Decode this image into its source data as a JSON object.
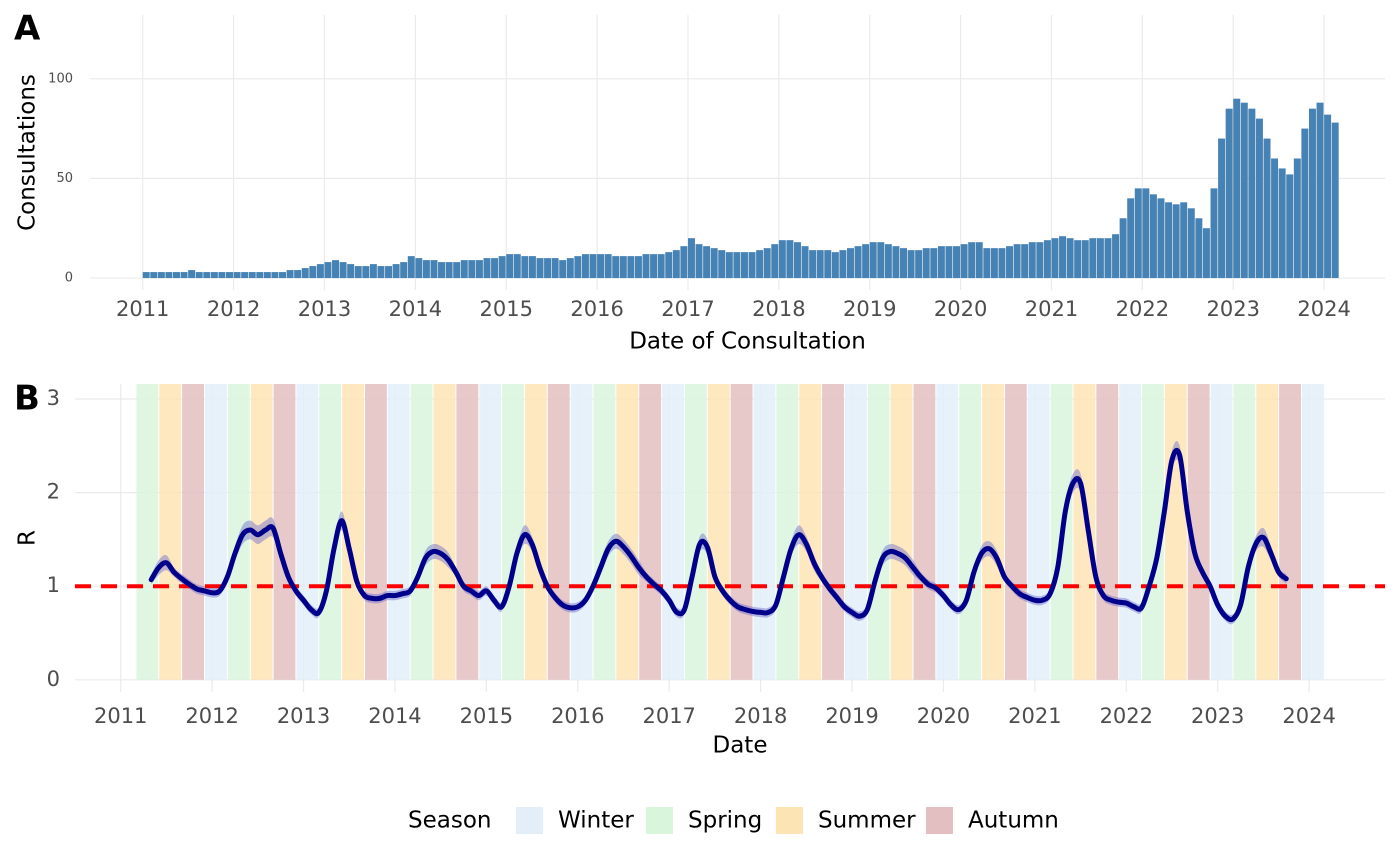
{
  "chart_data": [
    {
      "type": "bar",
      "panel_label": "A",
      "xlabel": "Date of Consultation",
      "ylabel": "Consultations",
      "color": "#4682b4",
      "xlim": [
        2010.42,
        2024.67
      ],
      "xticks": [
        2011,
        2012,
        2013,
        2014,
        2015,
        2016,
        2017,
        2018,
        2019,
        2020,
        2021,
        2022,
        2023,
        2024
      ],
      "ylim": [
        -6,
        132
      ],
      "yticks": [
        0,
        50,
        100
      ],
      "grid": true,
      "x": [
        "2011-01",
        "2011-02",
        "2011-03",
        "2011-04",
        "2011-05",
        "2011-06",
        "2011-07",
        "2011-08",
        "2011-09",
        "2011-10",
        "2011-11",
        "2011-12",
        "2012-01",
        "2012-02",
        "2012-03",
        "2012-04",
        "2012-05",
        "2012-06",
        "2012-07",
        "2012-08",
        "2012-09",
        "2012-10",
        "2012-11",
        "2012-12",
        "2013-01",
        "2013-02",
        "2013-03",
        "2013-04",
        "2013-05",
        "2013-06",
        "2013-07",
        "2013-08",
        "2013-09",
        "2013-10",
        "2013-11",
        "2013-12",
        "2014-01",
        "2014-02",
        "2014-03",
        "2014-04",
        "2014-05",
        "2014-06",
        "2014-07",
        "2014-08",
        "2014-09",
        "2014-10",
        "2014-11",
        "2014-12",
        "2015-01",
        "2015-02",
        "2015-03",
        "2015-04",
        "2015-05",
        "2015-06",
        "2015-07",
        "2015-08",
        "2015-09",
        "2015-10",
        "2015-11",
        "2015-12",
        "2016-01",
        "2016-02",
        "2016-03",
        "2016-04",
        "2016-05",
        "2016-06",
        "2016-07",
        "2016-08",
        "2016-09",
        "2016-10",
        "2016-11",
        "2016-12",
        "2017-01",
        "2017-02",
        "2017-03",
        "2017-04",
        "2017-05",
        "2017-06",
        "2017-07",
        "2017-08",
        "2017-09",
        "2017-10",
        "2017-11",
        "2017-12",
        "2018-01",
        "2018-02",
        "2018-03",
        "2018-04",
        "2018-05",
        "2018-06",
        "2018-07",
        "2018-08",
        "2018-09",
        "2018-10",
        "2018-11",
        "2018-12",
        "2019-01",
        "2019-02",
        "2019-03",
        "2019-04",
        "2019-05",
        "2019-06",
        "2019-07",
        "2019-08",
        "2019-09",
        "2019-10",
        "2019-11",
        "2019-12",
        "2020-01",
        "2020-02",
        "2020-03",
        "2020-04",
        "2020-05",
        "2020-06",
        "2020-07",
        "2020-08",
        "2020-09",
        "2020-10",
        "2020-11",
        "2020-12",
        "2021-01",
        "2021-02",
        "2021-03",
        "2021-04",
        "2021-05",
        "2021-06",
        "2021-07",
        "2021-08",
        "2021-09",
        "2021-10",
        "2021-11",
        "2021-12",
        "2022-01",
        "2022-02",
        "2022-03",
        "2022-04",
        "2022-05",
        "2022-06",
        "2022-07",
        "2022-08",
        "2022-09",
        "2022-10",
        "2022-11",
        "2022-12",
        "2023-01",
        "2023-02",
        "2023-03",
        "2023-04",
        "2023-05",
        "2023-06",
        "2023-07",
        "2023-08",
        "2023-09",
        "2023-10",
        "2023-11",
        "2023-12",
        "2024-01",
        "2024-02"
      ],
      "values": [
        3,
        3,
        3,
        3,
        3,
        3,
        4,
        3,
        3,
        3,
        3,
        3,
        3,
        3,
        3,
        3,
        3,
        3,
        3,
        4,
        4,
        5,
        6,
        7,
        8,
        9,
        8,
        7,
        6,
        6,
        7,
        6,
        6,
        7,
        8,
        11,
        10,
        9,
        9,
        8,
        8,
        8,
        9,
        9,
        9,
        10,
        10,
        11,
        12,
        12,
        11,
        11,
        10,
        10,
        10,
        9,
        10,
        11,
        12,
        12,
        12,
        12,
        11,
        11,
        11,
        11,
        12,
        12,
        12,
        13,
        14,
        16,
        20,
        17,
        16,
        15,
        14,
        13,
        13,
        13,
        13,
        14,
        15,
        17,
        19,
        19,
        18,
        16,
        14,
        14,
        14,
        13,
        14,
        15,
        16,
        17,
        18,
        18,
        17,
        16,
        15,
        14,
        14,
        15,
        15,
        16,
        16,
        16,
        17,
        18,
        18,
        15,
        15,
        15,
        16,
        17,
        17,
        18,
        18,
        19,
        20,
        21,
        20,
        19,
        19,
        20,
        20,
        20,
        22,
        30,
        40,
        45,
        45,
        42,
        40,
        38,
        37,
        38,
        35,
        30,
        25,
        45,
        70,
        85,
        90,
        88,
        85,
        80,
        70,
        60,
        55,
        52,
        60,
        75,
        85,
        88,
        82,
        78
      ]
    },
    {
      "type": "line",
      "panel_label": "B",
      "xlabel": "Date",
      "ylabel": "R",
      "color": "#00008b",
      "ribbon_color": "#6a6acd",
      "xlim": [
        2010.5,
        2024.83
      ],
      "xticks": [
        2011,
        2012,
        2013,
        2014,
        2015,
        2016,
        2017,
        2018,
        2019,
        2020,
        2021,
        2022,
        2023,
        2024
      ],
      "ylim": [
        -0.13,
        3.16
      ],
      "yticks": [
        0,
        1,
        2,
        3
      ],
      "grid": true,
      "hline": {
        "value": 1,
        "color": "#ff0000"
      },
      "x": [
        "2011-05",
        "2011-06",
        "2011-07",
        "2011-08",
        "2011-09",
        "2011-10",
        "2011-11",
        "2011-12",
        "2012-01",
        "2012-02",
        "2012-03",
        "2012-04",
        "2012-05",
        "2012-06",
        "2012-07",
        "2012-08",
        "2012-09",
        "2012-10",
        "2012-11",
        "2012-12",
        "2013-01",
        "2013-02",
        "2013-03",
        "2013-04",
        "2013-05",
        "2013-06",
        "2013-07",
        "2013-08",
        "2013-09",
        "2013-10",
        "2013-11",
        "2013-12",
        "2014-01",
        "2014-02",
        "2014-03",
        "2014-04",
        "2014-05",
        "2014-06",
        "2014-07",
        "2014-08",
        "2014-09",
        "2014-10",
        "2014-11",
        "2014-12",
        "2015-01",
        "2015-02",
        "2015-03",
        "2015-04",
        "2015-05",
        "2015-06",
        "2015-07",
        "2015-08",
        "2015-09",
        "2015-10",
        "2015-11",
        "2015-12",
        "2016-01",
        "2016-02",
        "2016-03",
        "2016-04",
        "2016-05",
        "2016-06",
        "2016-07",
        "2016-08",
        "2016-09",
        "2016-10",
        "2016-11",
        "2016-12",
        "2017-01",
        "2017-02",
        "2017-03",
        "2017-04",
        "2017-05",
        "2017-06",
        "2017-07",
        "2017-08",
        "2017-09",
        "2017-10",
        "2017-11",
        "2017-12",
        "2018-01",
        "2018-02",
        "2018-03",
        "2018-04",
        "2018-05",
        "2018-06",
        "2018-07",
        "2018-08",
        "2018-09",
        "2018-10",
        "2018-11",
        "2018-12",
        "2019-01",
        "2019-02",
        "2019-03",
        "2019-04",
        "2019-05",
        "2019-06",
        "2019-07",
        "2019-08",
        "2019-09",
        "2019-10",
        "2019-11",
        "2019-12",
        "2020-01",
        "2020-02",
        "2020-03",
        "2020-04",
        "2020-05",
        "2020-06",
        "2020-07",
        "2020-08",
        "2020-09",
        "2020-10",
        "2020-11",
        "2020-12",
        "2021-01",
        "2021-02",
        "2021-03",
        "2021-04",
        "2021-05",
        "2021-06",
        "2021-07",
        "2021-08",
        "2021-09",
        "2021-10",
        "2021-11",
        "2021-12",
        "2022-01",
        "2022-02",
        "2022-03",
        "2022-04",
        "2022-05",
        "2022-06",
        "2022-07",
        "2022-08",
        "2022-09",
        "2022-10",
        "2022-11",
        "2022-12",
        "2023-01",
        "2023-02",
        "2023-03",
        "2023-04",
        "2023-05",
        "2023-06",
        "2023-07",
        "2023-08",
        "2023-09",
        "2023-10"
      ],
      "values": [
        1.07,
        1.2,
        1.25,
        1.15,
        1.08,
        1.02,
        0.97,
        0.95,
        0.93,
        0.95,
        1.1,
        1.35,
        1.55,
        1.6,
        1.55,
        1.6,
        1.62,
        1.35,
        1.1,
        0.95,
        0.85,
        0.75,
        0.72,
        0.95,
        1.4,
        1.7,
        1.4,
        1.05,
        0.9,
        0.87,
        0.87,
        0.9,
        0.9,
        0.92,
        0.95,
        1.1,
        1.3,
        1.37,
        1.35,
        1.28,
        1.15,
        1.0,
        0.95,
        0.9,
        0.95,
        0.85,
        0.78,
        1.0,
        1.35,
        1.55,
        1.45,
        1.2,
        1.0,
        0.88,
        0.8,
        0.77,
        0.78,
        0.85,
        1.0,
        1.2,
        1.4,
        1.48,
        1.42,
        1.32,
        1.2,
        1.1,
        1.02,
        0.95,
        0.85,
        0.72,
        0.75,
        1.1,
        1.45,
        1.42,
        1.1,
        0.95,
        0.85,
        0.78,
        0.75,
        0.73,
        0.72,
        0.72,
        0.8,
        1.1,
        1.4,
        1.55,
        1.45,
        1.25,
        1.1,
        0.98,
        0.88,
        0.78,
        0.72,
        0.68,
        0.75,
        1.05,
        1.3,
        1.37,
        1.35,
        1.3,
        1.2,
        1.1,
        1.02,
        0.98,
        0.9,
        0.8,
        0.75,
        0.85,
        1.15,
        1.35,
        1.4,
        1.3,
        1.1,
        1.0,
        0.92,
        0.88,
        0.85,
        0.85,
        0.92,
        1.2,
        1.8,
        2.1,
        2.1,
        1.6,
        1.1,
        0.9,
        0.85,
        0.83,
        0.82,
        0.78,
        0.77,
        1.0,
        1.3,
        1.8,
        2.35,
        2.4,
        1.8,
        1.35,
        1.15,
        1.0,
        0.8,
        0.68,
        0.65,
        0.8,
        1.2,
        1.45,
        1.52,
        1.35,
        1.15,
        1.08
      ],
      "lower": [
        1.02,
        1.12,
        1.17,
        1.1,
        1.03,
        0.97,
        0.92,
        0.9,
        0.88,
        0.9,
        1.05,
        1.27,
        1.45,
        1.5,
        1.45,
        1.5,
        1.52,
        1.27,
        1.05,
        0.9,
        0.8,
        0.7,
        0.67,
        0.9,
        1.32,
        1.6,
        1.32,
        1.0,
        0.85,
        0.82,
        0.82,
        0.85,
        0.85,
        0.87,
        0.9,
        1.05,
        1.22,
        1.29,
        1.27,
        1.2,
        1.1,
        0.95,
        0.9,
        0.85,
        0.9,
        0.8,
        0.73,
        0.95,
        1.27,
        1.45,
        1.37,
        1.12,
        0.95,
        0.83,
        0.75,
        0.72,
        0.73,
        0.8,
        0.95,
        1.12,
        1.32,
        1.4,
        1.34,
        1.24,
        1.12,
        1.05,
        0.97,
        0.9,
        0.8,
        0.67,
        0.7,
        1.05,
        1.37,
        1.34,
        1.05,
        0.9,
        0.8,
        0.73,
        0.7,
        0.68,
        0.67,
        0.67,
        0.75,
        1.05,
        1.32,
        1.45,
        1.37,
        1.17,
        1.05,
        0.93,
        0.83,
        0.73,
        0.67,
        0.63,
        0.7,
        1.0,
        1.22,
        1.29,
        1.27,
        1.22,
        1.12,
        1.05,
        0.97,
        0.93,
        0.85,
        0.75,
        0.7,
        0.8,
        1.1,
        1.27,
        1.32,
        1.22,
        1.05,
        0.95,
        0.87,
        0.83,
        0.8,
        0.8,
        0.87,
        1.12,
        1.7,
        2.0,
        2.0,
        1.5,
        1.05,
        0.85,
        0.8,
        0.78,
        0.77,
        0.73,
        0.72,
        0.95,
        1.22,
        1.7,
        2.25,
        2.3,
        1.7,
        1.27,
        1.1,
        0.95,
        0.75,
        0.63,
        0.6,
        0.75,
        1.12,
        1.37,
        1.42,
        1.27,
        1.1,
        1.03
      ],
      "upper": [
        1.12,
        1.28,
        1.33,
        1.2,
        1.13,
        1.07,
        1.02,
        1.0,
        0.98,
        1.0,
        1.15,
        1.43,
        1.65,
        1.7,
        1.65,
        1.7,
        1.72,
        1.43,
        1.15,
        1.0,
        0.9,
        0.8,
        0.77,
        1.0,
        1.48,
        1.8,
        1.48,
        1.1,
        0.95,
        0.92,
        0.92,
        0.95,
        0.95,
        0.97,
        1.0,
        1.15,
        1.38,
        1.45,
        1.43,
        1.36,
        1.2,
        1.05,
        1.0,
        0.95,
        1.0,
        0.9,
        0.83,
        1.05,
        1.43,
        1.65,
        1.53,
        1.28,
        1.05,
        0.93,
        0.85,
        0.82,
        0.83,
        0.9,
        1.05,
        1.28,
        1.48,
        1.56,
        1.5,
        1.4,
        1.28,
        1.15,
        1.07,
        1.0,
        0.9,
        0.77,
        0.8,
        1.15,
        1.53,
        1.5,
        1.15,
        1.0,
        0.9,
        0.83,
        0.8,
        0.78,
        0.77,
        0.77,
        0.85,
        1.15,
        1.48,
        1.65,
        1.53,
        1.33,
        1.15,
        1.03,
        0.93,
        0.83,
        0.77,
        0.73,
        0.8,
        1.1,
        1.38,
        1.45,
        1.43,
        1.38,
        1.28,
        1.15,
        1.07,
        1.03,
        0.95,
        0.85,
        0.8,
        0.9,
        1.2,
        1.43,
        1.48,
        1.38,
        1.15,
        1.05,
        0.97,
        0.93,
        0.9,
        0.9,
        0.97,
        1.28,
        1.9,
        2.2,
        2.2,
        1.7,
        1.15,
        0.95,
        0.9,
        0.88,
        0.87,
        0.83,
        0.82,
        1.05,
        1.38,
        1.9,
        2.45,
        2.5,
        1.9,
        1.43,
        1.2,
        1.05,
        0.85,
        0.73,
        0.7,
        0.85,
        1.28,
        1.53,
        1.62,
        1.43,
        1.2,
        1.13
      ],
      "legend": {
        "title": "Season",
        "items": [
          {
            "name": "Winter",
            "color": "#e3eef9"
          },
          {
            "name": "Spring",
            "color": "#d9f6dd"
          },
          {
            "name": "Summer",
            "color": "#fde4b5"
          },
          {
            "name": "Autumn",
            "color": "#e3bfc1"
          }
        ]
      },
      "bands_end": "2024-03",
      "bands": [
        {
          "start": "2011-03",
          "season": "Spring"
        },
        {
          "start": "2011-06",
          "season": "Summer"
        },
        {
          "start": "2011-09",
          "season": "Autumn"
        },
        {
          "start": "2011-12",
          "season": "Winter"
        },
        {
          "start": "2012-03",
          "season": "Spring"
        },
        {
          "start": "2012-06",
          "season": "Summer"
        },
        {
          "start": "2012-09",
          "season": "Autumn"
        },
        {
          "start": "2012-12",
          "season": "Winter"
        },
        {
          "start": "2013-03",
          "season": "Spring"
        },
        {
          "start": "2013-06",
          "season": "Summer"
        },
        {
          "start": "2013-09",
          "season": "Autumn"
        },
        {
          "start": "2013-12",
          "season": "Winter"
        },
        {
          "start": "2014-03",
          "season": "Spring"
        },
        {
          "start": "2014-06",
          "season": "Summer"
        },
        {
          "start": "2014-09",
          "season": "Autumn"
        },
        {
          "start": "2014-12",
          "season": "Winter"
        },
        {
          "start": "2015-03",
          "season": "Spring"
        },
        {
          "start": "2015-06",
          "season": "Summer"
        },
        {
          "start": "2015-09",
          "season": "Autumn"
        },
        {
          "start": "2015-12",
          "season": "Winter"
        },
        {
          "start": "2016-03",
          "season": "Spring"
        },
        {
          "start": "2016-06",
          "season": "Summer"
        },
        {
          "start": "2016-09",
          "season": "Autumn"
        },
        {
          "start": "2016-12",
          "season": "Winter"
        },
        {
          "start": "2017-03",
          "season": "Spring"
        },
        {
          "start": "2017-06",
          "season": "Summer"
        },
        {
          "start": "2017-09",
          "season": "Autumn"
        },
        {
          "start": "2017-12",
          "season": "Winter"
        },
        {
          "start": "2018-03",
          "season": "Spring"
        },
        {
          "start": "2018-06",
          "season": "Summer"
        },
        {
          "start": "2018-09",
          "season": "Autumn"
        },
        {
          "start": "2018-12",
          "season": "Winter"
        },
        {
          "start": "2019-03",
          "season": "Spring"
        },
        {
          "start": "2019-06",
          "season": "Summer"
        },
        {
          "start": "2019-09",
          "season": "Autumn"
        },
        {
          "start": "2019-12",
          "season": "Winter"
        },
        {
          "start": "2020-03",
          "season": "Spring"
        },
        {
          "start": "2020-06",
          "season": "Summer"
        },
        {
          "start": "2020-09",
          "season": "Autumn"
        },
        {
          "start": "2020-12",
          "season": "Winter"
        },
        {
          "start": "2021-03",
          "season": "Spring"
        },
        {
          "start": "2021-06",
          "season": "Summer"
        },
        {
          "start": "2021-09",
          "season": "Autumn"
        },
        {
          "start": "2021-12",
          "season": "Winter"
        },
        {
          "start": "2022-03",
          "season": "Spring"
        },
        {
          "start": "2022-06",
          "season": "Summer"
        },
        {
          "start": "2022-09",
          "season": "Autumn"
        },
        {
          "start": "2022-12",
          "season": "Winter"
        },
        {
          "start": "2023-03",
          "season": "Spring"
        },
        {
          "start": "2023-06",
          "season": "Summer"
        },
        {
          "start": "2023-09",
          "season": "Autumn"
        },
        {
          "start": "2023-12",
          "season": "Winter"
        }
      ]
    }
  ]
}
